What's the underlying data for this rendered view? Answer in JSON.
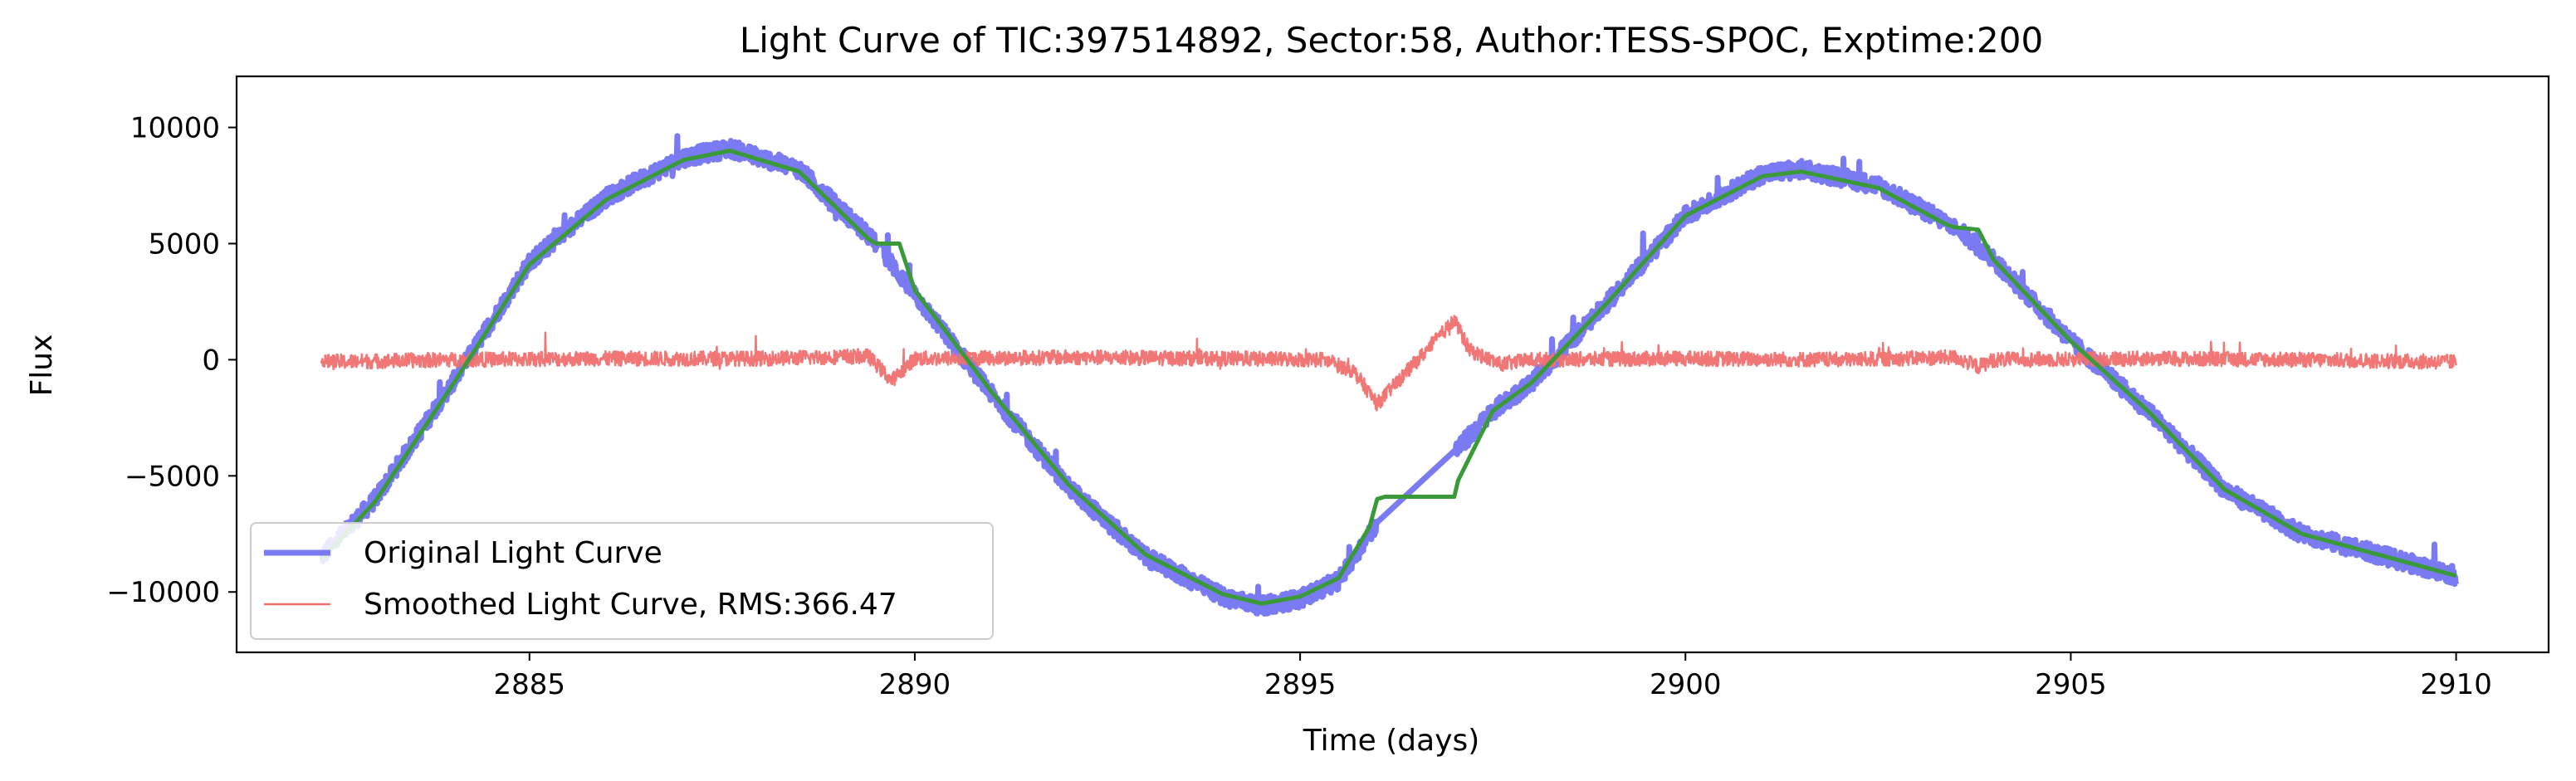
{
  "chart_data": {
    "type": "line",
    "title": "Light Curve of TIC:397514892, Sector:58, Author:TESS-SPOC, Exptime:200",
    "xlabel": "Time (days)",
    "ylabel": "Flux",
    "xlim": [
      2881.2,
      2911.2
    ],
    "ylim": [
      -12600,
      12200
    ],
    "x_ticks": [
      2885,
      2890,
      2895,
      2900,
      2905,
      2910
    ],
    "x_tick_labels": [
      "2885",
      "2890",
      "2895",
      "2900",
      "2905",
      "2910"
    ],
    "y_ticks": [
      10000,
      5000,
      0,
      -5000,
      -10000
    ],
    "y_tick_labels": [
      "10000",
      "5000",
      "0",
      "−5000",
      "−10000"
    ],
    "grid": false,
    "legend_position": "lower-left",
    "series": [
      {
        "name": "Original Light Curve",
        "color": "#7a7af2",
        "style": "thick-noisy",
        "noise": 380,
        "segments": [
          [
            2882.3,
            2889.5
          ],
          [
            2889.6,
            2896.0
          ],
          [
            2897.0,
            2903.5
          ],
          [
            2903.6,
            2910.0
          ]
        ],
        "x": [
          2882.3,
          2883.0,
          2884.0,
          2885.0,
          2886.0,
          2887.0,
          2887.6,
          2888.5,
          2889.5,
          2890.0,
          2891.0,
          2892.0,
          2893.0,
          2894.0,
          2894.5,
          2895.0,
          2895.5,
          2896.0,
          2897.0,
          2897.5,
          2898.0,
          2899.0,
          2900.0,
          2901.0,
          2901.5,
          2902.5,
          2903.5,
          2904.0,
          2905.0,
          2906.0,
          2907.0,
          2908.0,
          2909.0,
          2910.0
        ],
        "y": [
          -8500,
          -6000,
          -1000,
          4200,
          7000,
          8700,
          9100,
          8200,
          5000,
          2800,
          -1500,
          -5500,
          -8500,
          -10200,
          -10600,
          -10300,
          -9500,
          -7000,
          -4000,
          -2200,
          -1000,
          2500,
          6200,
          8000,
          8200,
          7500,
          5700,
          4300,
          800,
          -2200,
          -5600,
          -7500,
          -8400,
          -9300
        ]
      },
      {
        "name": "Smoothed Light Curve, RMS:366.47",
        "color": "#f07070",
        "style": "thin-noisy",
        "noise": 320,
        "x": [
          2882.3,
          2884.0,
          2886.0,
          2888.0,
          2889.4,
          2889.7,
          2890.0,
          2892.0,
          2894.0,
          2895.3,
          2895.7,
          2896.0,
          2897.0,
          2897.2,
          2897.6,
          2898.0,
          2900.0,
          2902.0,
          2903.5,
          2903.8,
          2904.0,
          2906.0,
          2908.0,
          2910.0
        ],
        "y": [
          -100,
          0,
          50,
          50,
          150,
          -900,
          50,
          100,
          50,
          0,
          -500,
          -1900,
          1700,
          400,
          -200,
          0,
          50,
          0,
          100,
          -300,
          0,
          50,
          0,
          -100
        ]
      },
      {
        "name": "",
        "color": "#3a9a3a",
        "style": "smooth",
        "x": [
          2882.3,
          2883.0,
          2884.0,
          2885.0,
          2886.0,
          2887.0,
          2887.6,
          2888.5,
          2889.4,
          2889.5,
          2889.8,
          2890.0,
          2891.0,
          2892.0,
          2893.0,
          2894.0,
          2894.5,
          2895.0,
          2895.5,
          2895.9,
          2896.0,
          2896.1,
          2897.0,
          2897.05,
          2897.5,
          2898.0,
          2899.0,
          2900.0,
          2901.0,
          2901.5,
          2902.5,
          2903.4,
          2903.5,
          2903.8,
          2904.0,
          2905.0,
          2906.0,
          2907.0,
          2908.0,
          2909.0,
          2910.0
        ],
        "y": [
          -8600,
          -6100,
          -1100,
          4100,
          6900,
          8600,
          9000,
          8100,
          5200,
          5000,
          5000,
          3000,
          -1400,
          -5400,
          -8400,
          -10100,
          -10500,
          -10200,
          -9400,
          -7200,
          -6000,
          -5900,
          -5900,
          -5200,
          -2200,
          -1000,
          2500,
          6200,
          7900,
          8100,
          7400,
          5800,
          5700,
          5600,
          4300,
          800,
          -2200,
          -5600,
          -7500,
          -8400,
          -9300
        ]
      }
    ]
  }
}
